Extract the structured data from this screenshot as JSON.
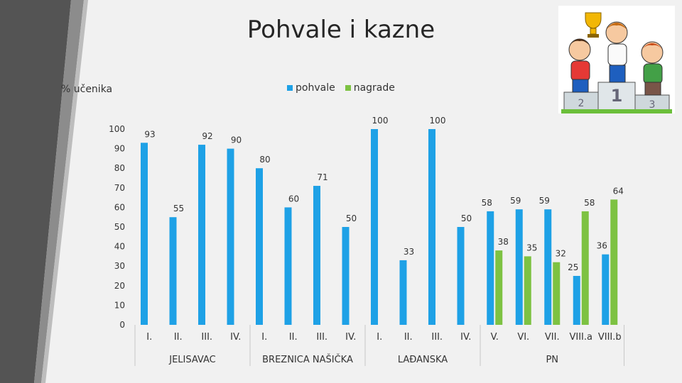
{
  "chart_data": {
    "type": "bar",
    "title": "Pohvale i kazne",
    "ylabel": "% učenika",
    "ylim": [
      0,
      100
    ],
    "yticks": [
      0,
      10,
      20,
      30,
      40,
      50,
      60,
      70,
      80,
      90,
      100
    ],
    "grid": false,
    "legend_position": "top",
    "categories": [
      "I.",
      "II.",
      "III.",
      "IV.",
      "I.",
      "II.",
      "III.",
      "IV.",
      "I.",
      "II.",
      "III.",
      "IV.",
      "V.",
      "VI.",
      "VII.",
      "VIII.a",
      "VIII.b"
    ],
    "groups": [
      {
        "label": "JELISAVAC",
        "start": 0,
        "end": 3
      },
      {
        "label": "BREZNICA NAŠIČKA",
        "start": 4,
        "end": 7
      },
      {
        "label": "LAĐANSKA",
        "start": 8,
        "end": 11
      },
      {
        "label": "PN",
        "start": 12,
        "end": 16
      }
    ],
    "series": [
      {
        "name": "pohvale",
        "color": "#1ea1e6",
        "values": [
          93,
          55,
          92,
          90,
          80,
          60,
          71,
          50,
          100,
          33,
          100,
          50,
          58,
          59,
          59,
          25,
          36
        ]
      },
      {
        "name": "nagrade",
        "color": "#7dc242",
        "values": [
          null,
          null,
          null,
          null,
          null,
          null,
          null,
          null,
          null,
          null,
          null,
          null,
          38,
          35,
          32,
          58,
          64
        ]
      }
    ]
  },
  "decor": {
    "clipart": "trophy-podium-kids-clipart",
    "podium_numbers": [
      "2",
      "1",
      "3"
    ]
  }
}
